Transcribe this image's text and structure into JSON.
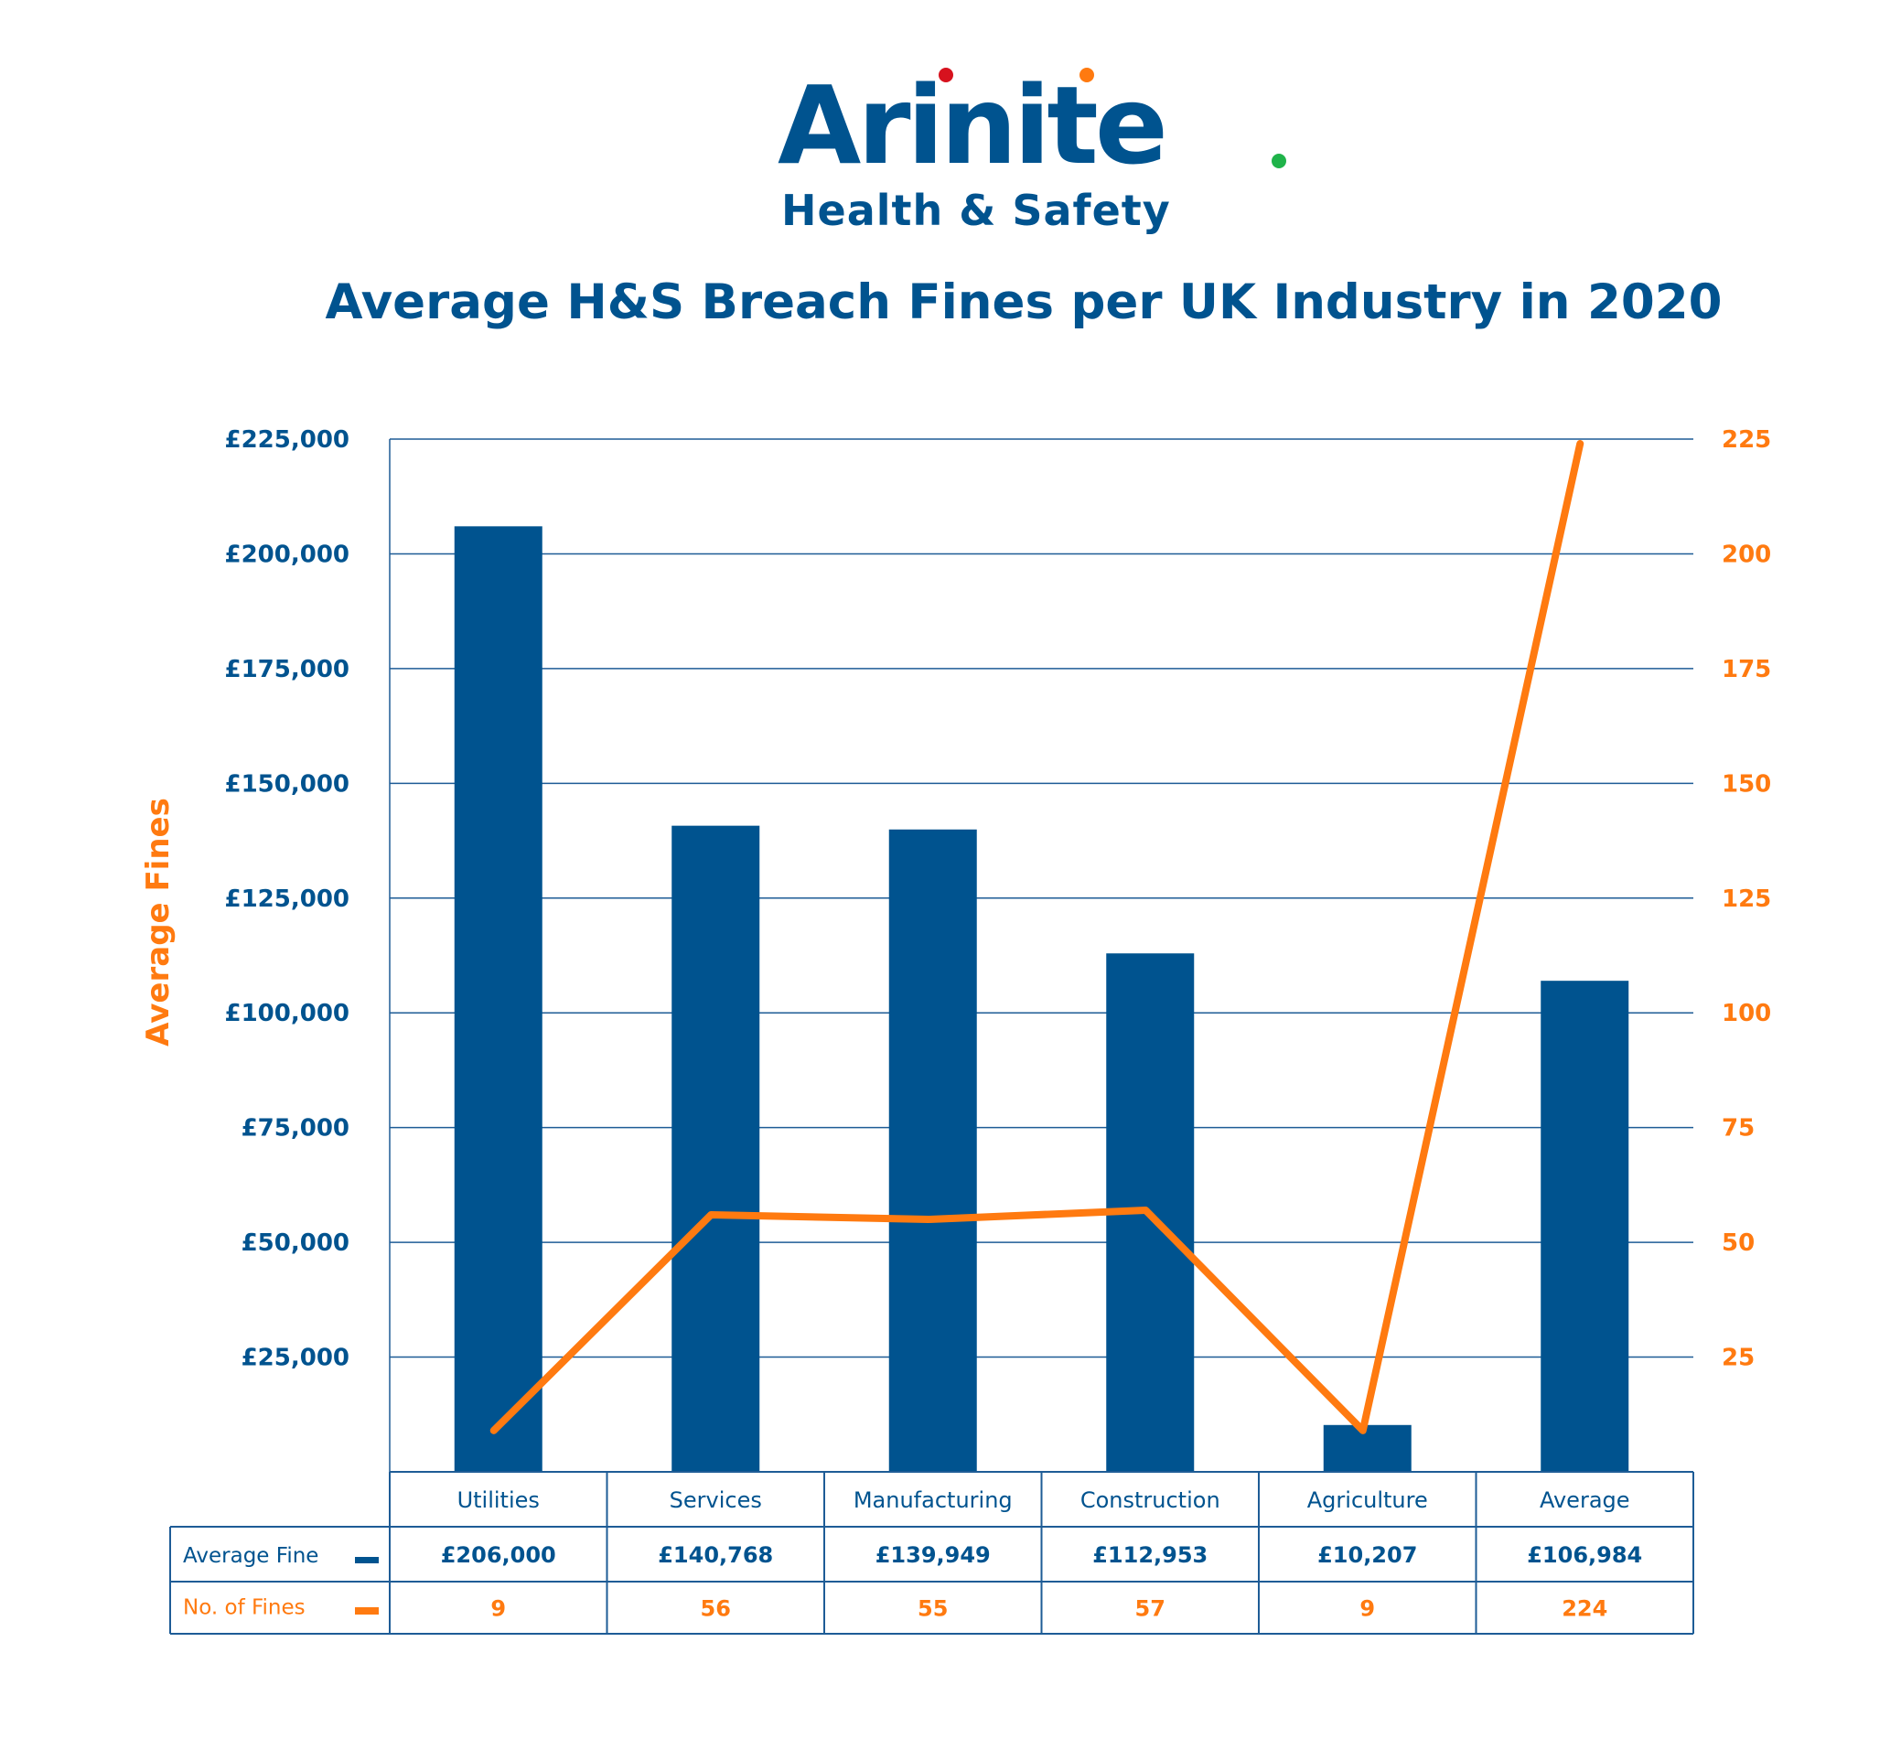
{
  "logo": {
    "name": "Arinite",
    "tagline": "Health & Safety"
  },
  "colors": {
    "bar": "#00538f",
    "line": "#ff7a10",
    "text_blue": "#00538f",
    "grid": "#1e5c96"
  },
  "chart_data": {
    "type": "bar+line",
    "title": "Average H&S Breach Fines per UK Industry in 2020",
    "ylabel": "Average Fines",
    "categories": [
      "Utilities",
      "Services",
      "Manufacturing",
      "Construction",
      "Agriculture",
      "Average"
    ],
    "series": [
      {
        "name": "Average Fine",
        "type": "bar",
        "axis": "left",
        "values": [
          206000,
          140768,
          139949,
          112953,
          10207,
          106984
        ],
        "labels": [
          "£206,000",
          "£140,768",
          "£139,949",
          "£112,953",
          "£10,207",
          "£106,984"
        ]
      },
      {
        "name": "No. of Fines",
        "type": "line",
        "axis": "right",
        "values": [
          9,
          56,
          55,
          57,
          9,
          224
        ],
        "labels": [
          "9",
          "56",
          "55",
          "57",
          "9",
          "224"
        ]
      }
    ],
    "y_left": {
      "range": [
        0,
        225000
      ],
      "ticks": [
        "£25,000",
        "£50,000",
        "£75,000",
        "£100,000",
        "£125,000",
        "£150,000",
        "£175,000",
        "£200,000",
        "£225,000"
      ]
    },
    "y_right": {
      "range": [
        0,
        225
      ],
      "ticks": [
        "25",
        "50",
        "75",
        "100",
        "125",
        "150",
        "175",
        "200",
        "225"
      ]
    },
    "grid": true,
    "legend": "data table below chart"
  }
}
